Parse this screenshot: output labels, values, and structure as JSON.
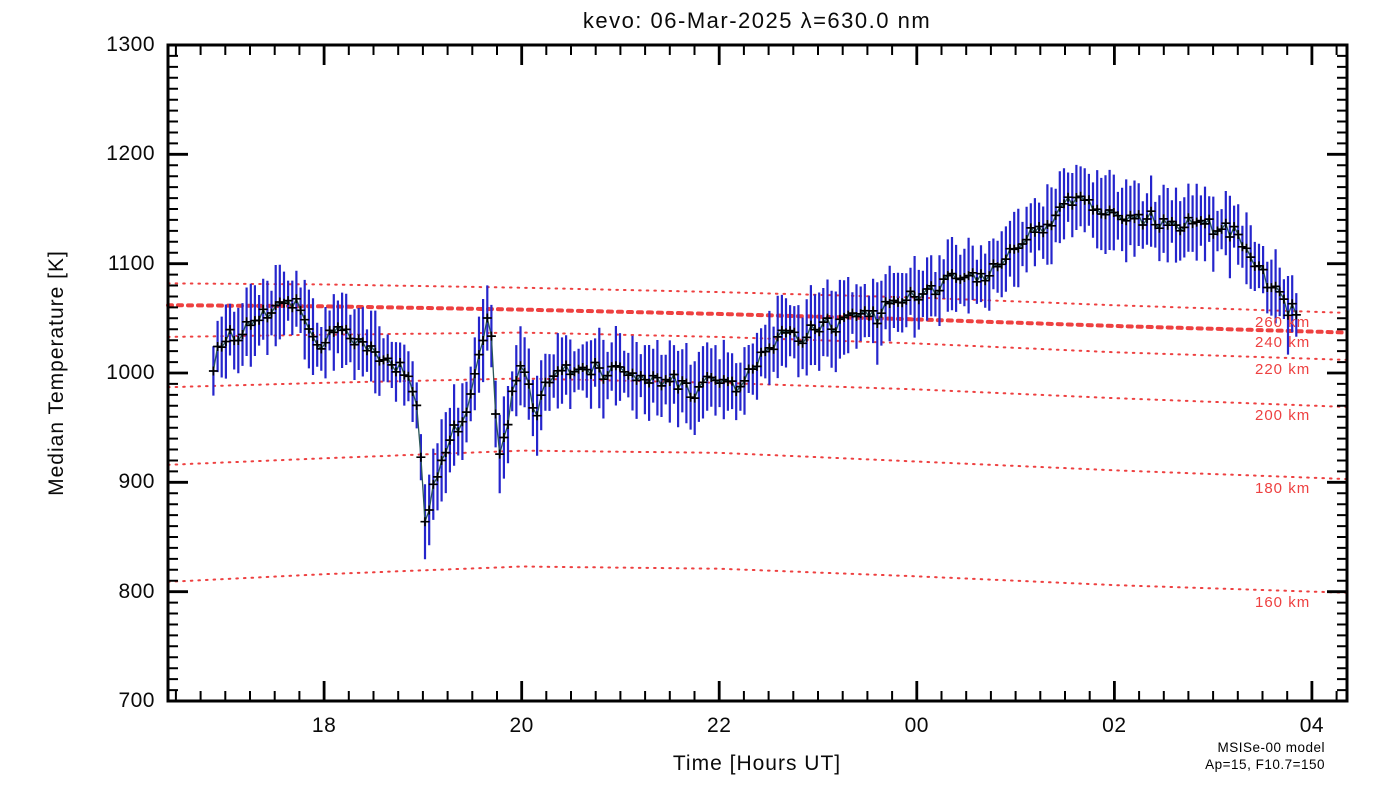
{
  "title": "kevo: 06-Mar-2025 λ=630.0 nm",
  "axes": {
    "xlabel": "Time [Hours UT]",
    "ylabel": "Median Temperature [K]",
    "x_range": [
      16.42,
      28.355
    ],
    "y_range": [
      700,
      1300
    ],
    "x_major_ticks": [
      {
        "t": 18,
        "label": "18"
      },
      {
        "t": 20,
        "label": "20"
      },
      {
        "t": 22,
        "label": "22"
      },
      {
        "t": 24,
        "label": "00"
      },
      {
        "t": 26,
        "label": "02"
      },
      {
        "t": 28,
        "label": "04"
      }
    ],
    "x_minor_step": 0.25,
    "y_major_ticks": [
      {
        "v": 700,
        "label": "700"
      },
      {
        "v": 800,
        "label": "800"
      },
      {
        "v": 900,
        "label": "900"
      },
      {
        "v": 1000,
        "label": "1000"
      },
      {
        "v": 1100,
        "label": "1100"
      },
      {
        "v": 1200,
        "label": "1200"
      },
      {
        "v": 1300,
        "label": "1300"
      }
    ],
    "y_minor_step": 10,
    "grid": false
  },
  "credit": {
    "line1": "MSISe-00 model",
    "line2": "Ap=15, F10.7=150"
  },
  "colors": {
    "frame": "#000000",
    "marker": "#000000",
    "data_line": "#2a5858",
    "error_bar": "#2525cc",
    "model_red": "#ee4040",
    "background": "#ffffff"
  },
  "chart_data": {
    "type": "line",
    "title": "kevo: 06-Mar-2025 λ=630.0 nm",
    "xlabel": "Time [Hours UT]",
    "ylabel": "Median Temperature [K]",
    "x_unit": "decimal hours UT; values greater than 24 are hours past midnight",
    "xlim": [
      16.42,
      28.355
    ],
    "ylim": [
      700,
      1300
    ],
    "main_series": {
      "name": "median-temperature",
      "marker": "plus",
      "sample_step_h": 0.042,
      "noise_k": 7,
      "error_bar_k": 28,
      "error_bar_jitter_k": 10,
      "seed": 20250306,
      "anchors": [
        [
          16.88,
          1003
        ],
        [
          16.93,
          1022
        ],
        [
          17.0,
          1028
        ],
        [
          17.05,
          1033
        ],
        [
          17.1,
          1029
        ],
        [
          17.15,
          1036
        ],
        [
          17.2,
          1041
        ],
        [
          17.3,
          1048
        ],
        [
          17.4,
          1055
        ],
        [
          17.5,
          1064
        ],
        [
          17.55,
          1070
        ],
        [
          17.62,
          1067
        ],
        [
          17.7,
          1064
        ],
        [
          17.75,
          1060
        ],
        [
          17.8,
          1050
        ],
        [
          17.88,
          1038
        ],
        [
          17.95,
          1028
        ],
        [
          18.0,
          1030
        ],
        [
          18.05,
          1035
        ],
        [
          18.1,
          1038
        ],
        [
          18.18,
          1041
        ],
        [
          18.25,
          1037
        ],
        [
          18.32,
          1031
        ],
        [
          18.4,
          1026
        ],
        [
          18.5,
          1019
        ],
        [
          18.6,
          1016
        ],
        [
          18.7,
          1009
        ],
        [
          18.8,
          1001
        ],
        [
          18.88,
          992
        ],
        [
          18.94,
          968
        ],
        [
          18.98,
          920
        ],
        [
          19.02,
          868
        ],
        [
          19.04,
          850
        ],
        [
          19.08,
          880
        ],
        [
          19.13,
          903
        ],
        [
          19.18,
          920
        ],
        [
          19.25,
          938
        ],
        [
          19.32,
          946
        ],
        [
          19.4,
          951
        ],
        [
          19.47,
          968
        ],
        [
          19.53,
          995
        ],
        [
          19.58,
          1020
        ],
        [
          19.63,
          1045
        ],
        [
          19.66,
          1058
        ],
        [
          19.69,
          1032
        ],
        [
          19.72,
          1000
        ],
        [
          19.74,
          960
        ],
        [
          19.77,
          915
        ],
        [
          19.8,
          930
        ],
        [
          19.85,
          947
        ],
        [
          19.9,
          975
        ],
        [
          19.95,
          996
        ],
        [
          20.0,
          1004
        ],
        [
          20.05,
          997
        ],
        [
          20.1,
          973
        ],
        [
          20.15,
          958
        ],
        [
          20.2,
          976
        ],
        [
          20.26,
          992
        ],
        [
          20.33,
          1002
        ],
        [
          20.45,
          1006
        ],
        [
          20.55,
          1002
        ],
        [
          20.65,
          1007
        ],
        [
          20.75,
          1003
        ],
        [
          20.85,
          998
        ],
        [
          20.95,
          1003
        ],
        [
          21.05,
          1006
        ],
        [
          21.15,
          1000
        ],
        [
          21.25,
          996
        ],
        [
          21.35,
          991
        ],
        [
          21.45,
          989
        ],
        [
          21.55,
          993
        ],
        [
          21.65,
          986
        ],
        [
          21.73,
          976
        ],
        [
          21.8,
          989
        ],
        [
          21.9,
          995
        ],
        [
          22.0,
          995
        ],
        [
          22.1,
          990
        ],
        [
          22.18,
          988
        ],
        [
          22.3,
          1000
        ],
        [
          22.4,
          1012
        ],
        [
          22.5,
          1022
        ],
        [
          22.6,
          1030
        ],
        [
          22.7,
          1036
        ],
        [
          22.8,
          1030
        ],
        [
          22.9,
          1038
        ],
        [
          23.0,
          1042
        ],
        [
          23.1,
          1047
        ],
        [
          23.2,
          1043
        ],
        [
          23.3,
          1049
        ],
        [
          23.4,
          1053
        ],
        [
          23.5,
          1057
        ],
        [
          23.6,
          1052
        ],
        [
          23.7,
          1060
        ],
        [
          23.8,
          1062
        ],
        [
          23.9,
          1066
        ],
        [
          24.0,
          1072
        ],
        [
          24.1,
          1081
        ],
        [
          24.2,
          1078
        ],
        [
          24.3,
          1083
        ],
        [
          24.4,
          1086
        ],
        [
          24.5,
          1083
        ],
        [
          24.6,
          1087
        ],
        [
          24.7,
          1091
        ],
        [
          24.8,
          1099
        ],
        [
          24.9,
          1109
        ],
        [
          25.0,
          1116
        ],
        [
          25.1,
          1123
        ],
        [
          25.2,
          1129
        ],
        [
          25.3,
          1136
        ],
        [
          25.4,
          1144
        ],
        [
          25.5,
          1152
        ],
        [
          25.58,
          1160
        ],
        [
          25.65,
          1155
        ],
        [
          25.72,
          1158
        ],
        [
          25.8,
          1152
        ],
        [
          25.9,
          1148
        ],
        [
          26.0,
          1151
        ],
        [
          26.07,
          1143
        ],
        [
          26.15,
          1148
        ],
        [
          26.25,
          1140
        ],
        [
          26.35,
          1144
        ],
        [
          26.45,
          1138
        ],
        [
          26.55,
          1142
        ],
        [
          26.65,
          1135
        ],
        [
          26.75,
          1140
        ],
        [
          26.85,
          1132
        ],
        [
          26.95,
          1137
        ],
        [
          27.05,
          1130
        ],
        [
          27.15,
          1133
        ],
        [
          27.22,
          1127
        ],
        [
          27.3,
          1116
        ],
        [
          27.38,
          1104
        ],
        [
          27.45,
          1094
        ],
        [
          27.52,
          1086
        ],
        [
          27.6,
          1076
        ],
        [
          27.68,
          1067
        ],
        [
          27.75,
          1060
        ],
        [
          27.82,
          1055
        ],
        [
          27.88,
          1051
        ]
      ]
    },
    "model_curves": {
      "name": "MSISe-00 model altitude isolines",
      "anchor_times": [
        16.42,
        18,
        20,
        22,
        24,
        26,
        28.35
      ],
      "curves": [
        {
          "label": "260 km",
          "thick": false,
          "temps": [
            1082,
            1081,
            1078,
            1074,
            1069,
            1062,
            1055
          ]
        },
        {
          "label": "240 km",
          "thick": true,
          "temps": [
            1062,
            1061,
            1058,
            1054,
            1049,
            1043,
            1037
          ]
        },
        {
          "label": "220 km",
          "thick": false,
          "temps": [
            1033,
            1035,
            1037,
            1033,
            1027,
            1019,
            1012
          ]
        },
        {
          "label": "200 km",
          "thick": false,
          "temps": [
            987,
            991,
            995,
            991,
            985,
            977,
            969
          ]
        },
        {
          "label": "180 km",
          "thick": false,
          "temps": [
            916,
            922,
            929,
            927,
            919,
            911,
            903
          ]
        },
        {
          "label": "160 km",
          "thick": false,
          "temps": [
            809,
            816,
            823,
            821,
            814,
            806,
            799
          ]
        }
      ]
    }
  }
}
